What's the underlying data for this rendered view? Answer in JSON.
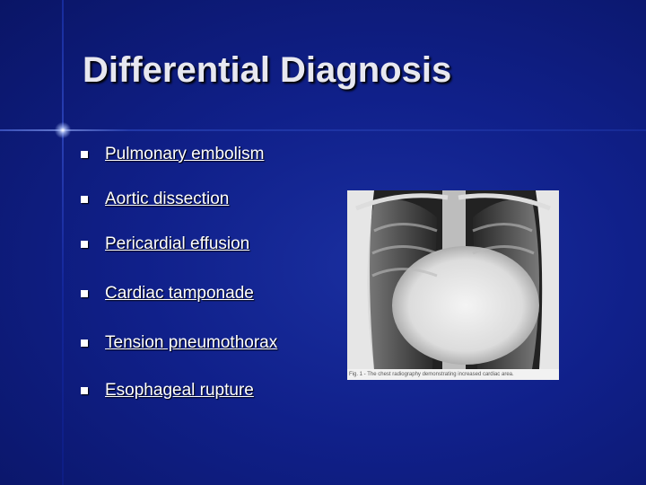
{
  "slide": {
    "title": "Differential Diagnosis",
    "bullets": [
      "Pulmonary embolism",
      "Aortic dissection",
      "Pericardial effusion",
      "Cardiac tamponade",
      "Tension pneumothorax",
      "Esophageal rupture"
    ],
    "image_caption": "Fig. 1 - The chest radiography demonstrating increased cardiac area."
  }
}
